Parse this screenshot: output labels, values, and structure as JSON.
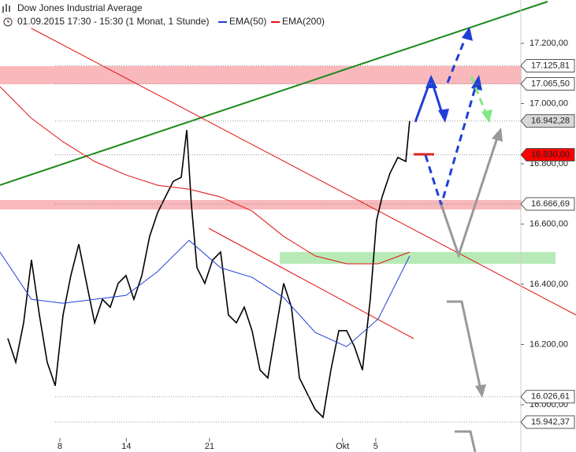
{
  "chart_data": {
    "type": "line",
    "title": "Dow Jones Industrial Average",
    "subtitle": "01.09.2015 17:30 - 15:30 (1 Monat, 1 Stunde)",
    "xlim": [
      0.4,
      31.68
    ],
    "ylim": [
      15843,
      17344
    ],
    "grid": false,
    "xticks": [
      {
        "value": 4,
        "label": "8"
      },
      {
        "value": 8,
        "label": "14"
      },
      {
        "value": 13,
        "label": "21"
      },
      {
        "value": 21,
        "label": "Okt"
      },
      {
        "value": 23,
        "label": "5"
      }
    ],
    "yticks": [
      {
        "value": 17200,
        "label": "17.200,00"
      },
      {
        "value": 17000,
        "label": "17.000,00"
      },
      {
        "value": 16800,
        "label": "16.800,00"
      },
      {
        "value": 16600,
        "label": "16.600,00"
      },
      {
        "value": 16400,
        "label": "16.400,00"
      },
      {
        "value": 16200,
        "label": "16.200,00"
      },
      {
        "value": 16000,
        "label": "16.000,00"
      }
    ],
    "series": [
      {
        "name": "Dow Jones Industrial Average",
        "color": "#000000",
        "x": [
          0.87,
          1.35,
          1.82,
          2.29,
          2.77,
          3.24,
          3.72,
          4.19,
          4.66,
          5.14,
          5.61,
          6.09,
          6.56,
          7.03,
          7.51,
          7.98,
          8.45,
          8.93,
          9.4,
          9.88,
          10.35,
          10.82,
          11.3,
          11.63,
          11.91,
          12.25,
          12.72,
          13.19,
          13.67,
          14.14,
          14.62,
          15.09,
          15.56,
          16.04,
          16.51,
          16.99,
          17.46,
          17.93,
          18.41,
          18.88,
          19.36,
          19.83,
          20.3,
          20.78,
          21.25,
          21.72,
          22.2,
          22.67,
          23.05,
          23.38,
          23.86,
          24.33,
          24.81,
          25.04
        ],
        "values": [
          16220,
          16141,
          16272,
          16481,
          16298,
          16141,
          16063,
          16298,
          16429,
          16533,
          16403,
          16272,
          16350,
          16324,
          16403,
          16429,
          16350,
          16429,
          16559,
          16638,
          16690,
          16742,
          16755,
          16912,
          16664,
          16455,
          16403,
          16481,
          16507,
          16298,
          16272,
          16324,
          16246,
          16115,
          16089,
          16246,
          16403,
          16324,
          16089,
          16037,
          15984,
          15958,
          16115,
          16246,
          16246,
          16193,
          16115,
          16350,
          16612,
          16690,
          16769,
          16821,
          16808,
          16942
        ]
      },
      {
        "name": "EMA(50)",
        "color": "#1f3fd6",
        "x": [
          0.4,
          2.29,
          4.19,
          6.09,
          7.98,
          9.88,
          11.77,
          13.67,
          15.56,
          17.46,
          19.36,
          21.25,
          23.15,
          25.04
        ],
        "values": [
          16507,
          16350,
          16337,
          16350,
          16363,
          16442,
          16546,
          16455,
          16423,
          16356,
          16240,
          16193,
          16285,
          16494
        ]
      },
      {
        "name": "EMA(200)",
        "color": "#e01010",
        "x": [
          0.4,
          2.29,
          4.19,
          6.09,
          7.98,
          9.88,
          11.77,
          13.67,
          15.56,
          17.46,
          19.36,
          21.25,
          23.15,
          25.04
        ],
        "values": [
          17056,
          16951,
          16873,
          16808,
          16763,
          16729,
          16716,
          16690,
          16643,
          16559,
          16494,
          16468,
          16468,
          16507
        ]
      }
    ],
    "price_levels": [
      {
        "value": 17125.81,
        "label": "17.125,81",
        "color": "#ffffff"
      },
      {
        "value": 17065.5,
        "label": "17.065,50",
        "color": "#ffffff"
      },
      {
        "value": 16942.28,
        "label": "16.942,28",
        "color": "#d8d8d8"
      },
      {
        "value": 16830,
        "label": "16.830,00",
        "color": "#ff0000"
      },
      {
        "value": 16666.69,
        "label": "16.666,69",
        "color": "#ffffff"
      },
      {
        "value": 16026.61,
        "label": "16.026,61",
        "color": "#ffffff"
      },
      {
        "value": 15942.37,
        "label": "15.942,37",
        "color": "#ffffff"
      }
    ]
  }
}
